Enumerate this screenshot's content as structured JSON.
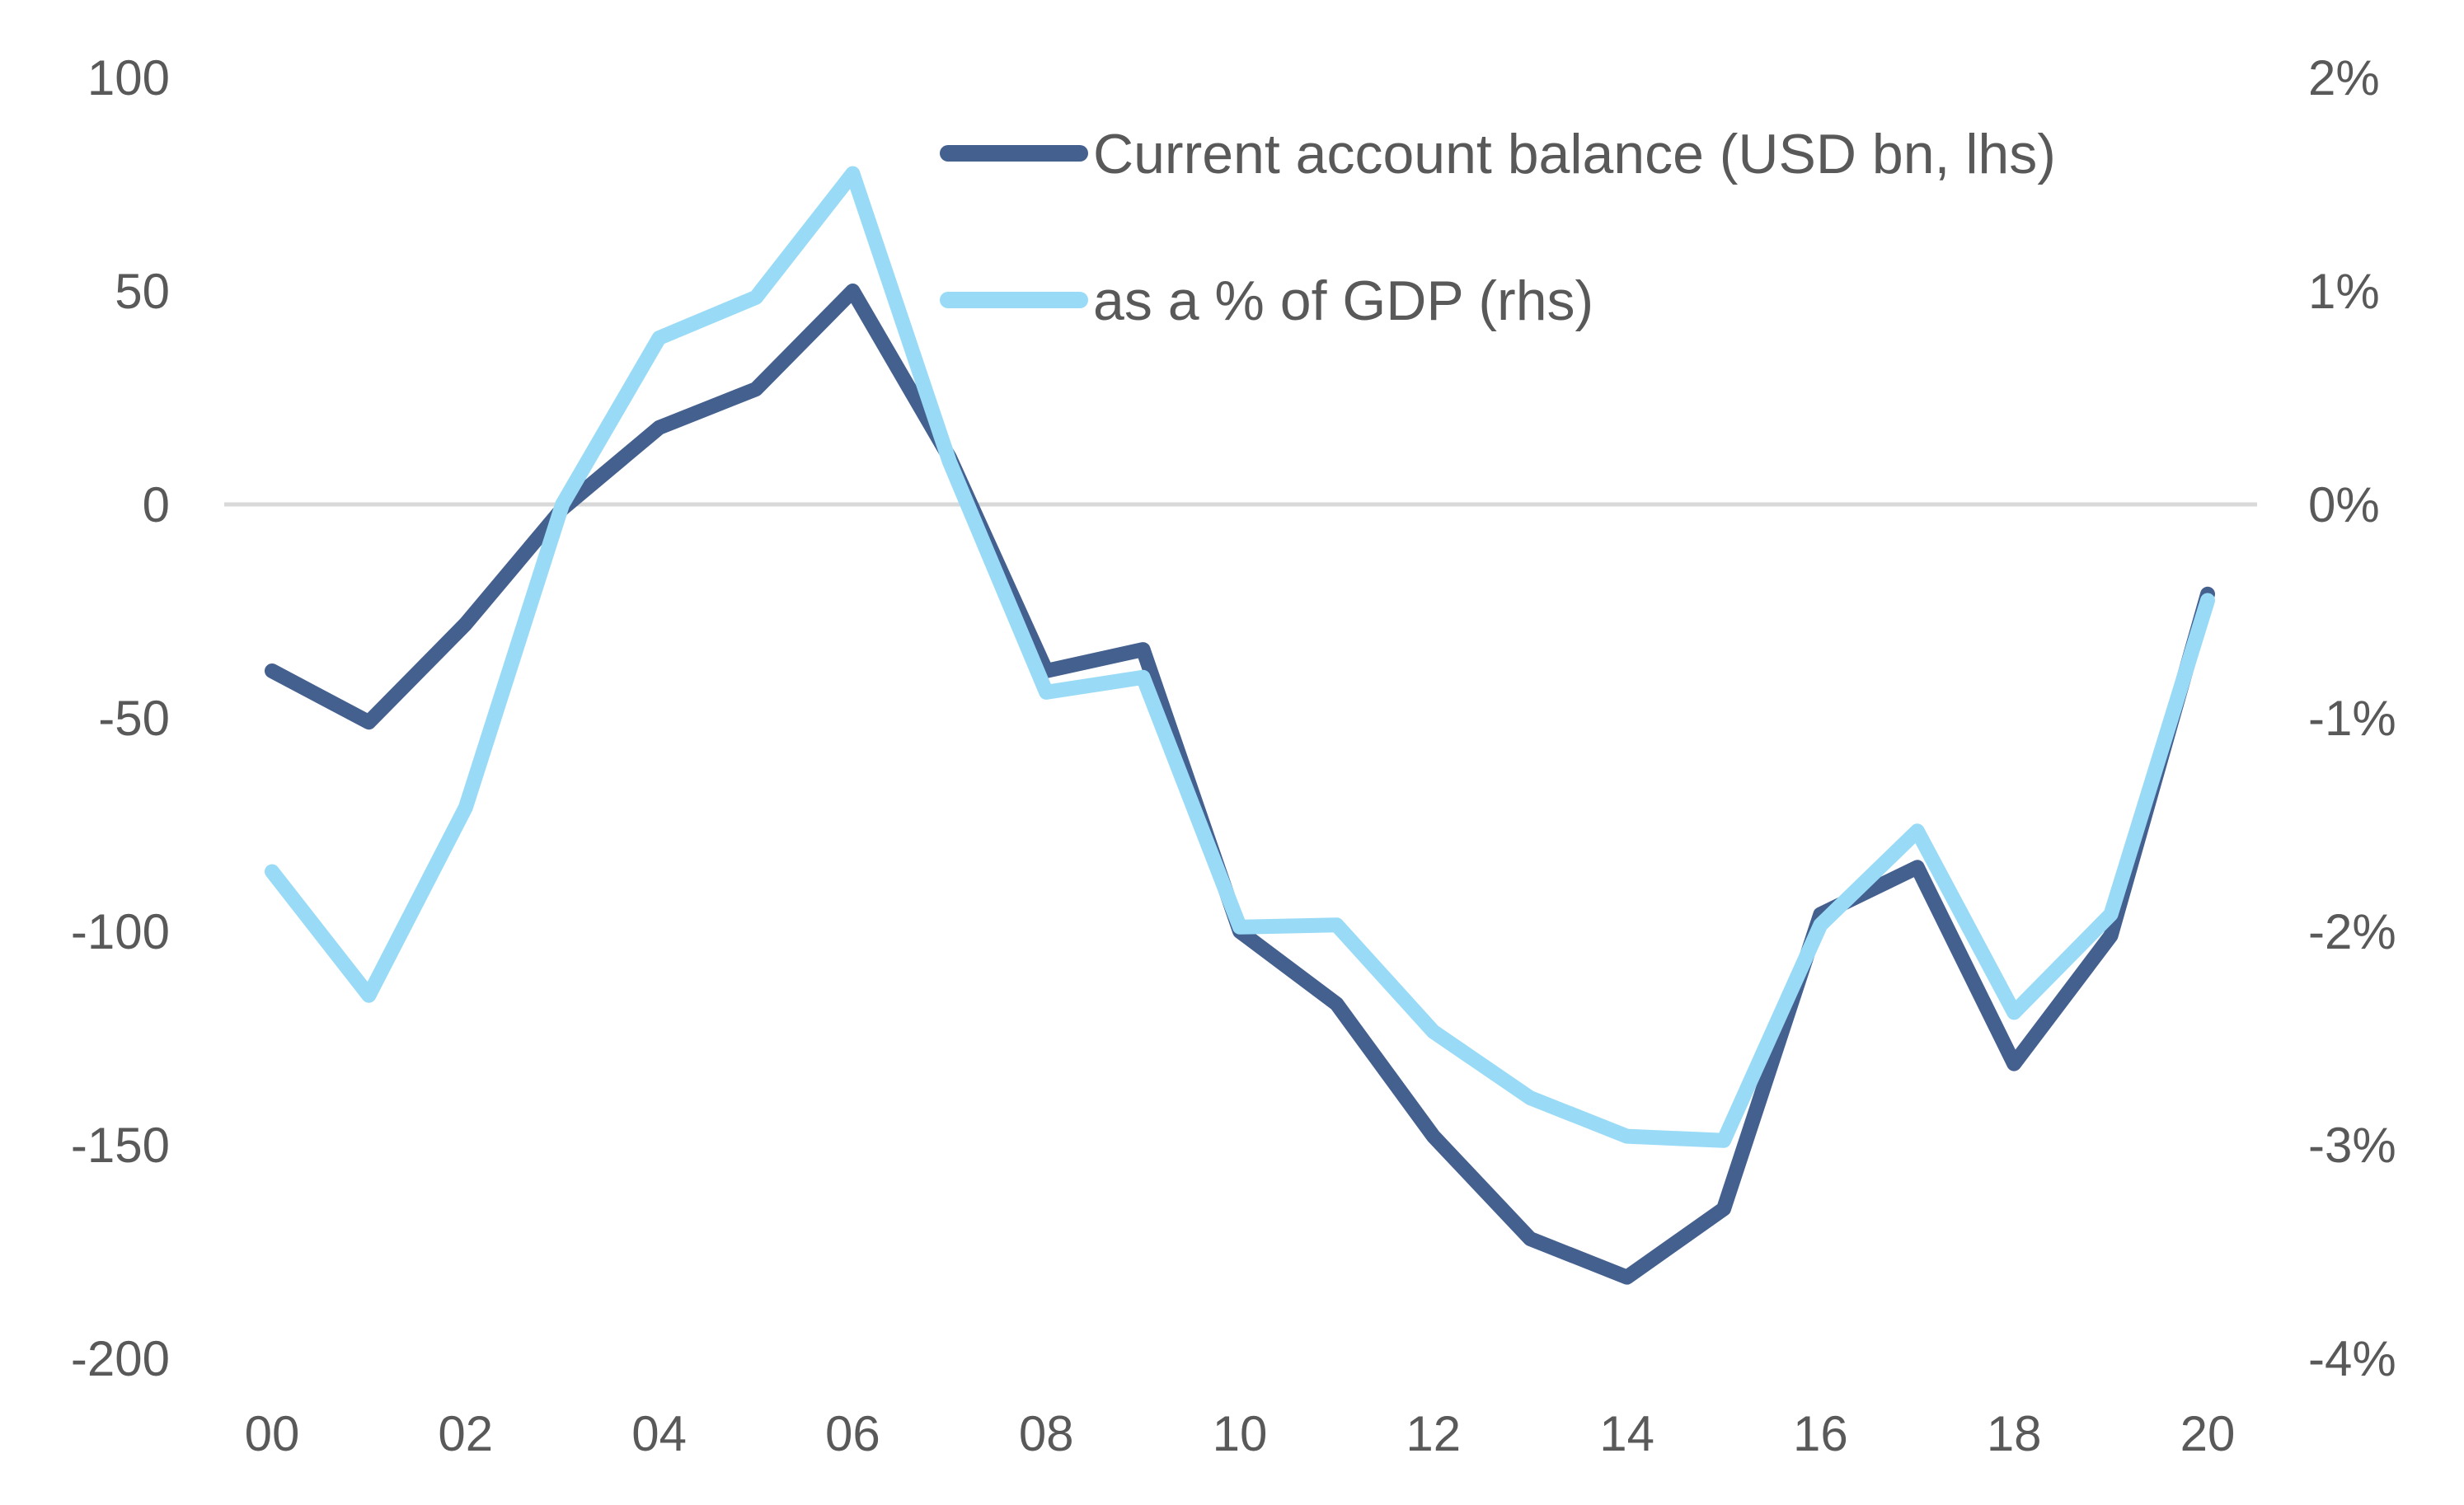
{
  "chart_data": {
    "type": "line",
    "title": "",
    "xlabel": "",
    "ylabel": "",
    "x": [
      "00",
      "01",
      "02",
      "03",
      "04",
      "05",
      "06",
      "07",
      "08",
      "09",
      "10",
      "11",
      "12",
      "13",
      "14",
      "15",
      "16",
      "17",
      "18",
      "19",
      "20"
    ],
    "x_tick_labels": [
      "00",
      "02",
      "04",
      "06",
      "08",
      "10",
      "12",
      "14",
      "16",
      "18",
      "20"
    ],
    "ylim_left": [
      -200,
      100
    ],
    "ylim_right": [
      -4,
      2
    ],
    "y_ticks_left": [
      "100",
      "50",
      "0",
      "-50",
      "-100",
      "-150",
      "-200"
    ],
    "y_ticks_right": [
      "2%",
      "1%",
      "0%",
      "-1%",
      "-2%",
      "-3%",
      "-4%"
    ],
    "grid": false,
    "legend_position": "top-center",
    "series": [
      {
        "name": "Current account balance (USD bn, lhs)",
        "axis": "left",
        "color": "#44608f",
        "values": [
          -39,
          -51,
          -28,
          -1,
          18,
          27,
          50,
          11,
          -39,
          -34,
          -100,
          -117,
          -148,
          -172,
          -181,
          -165,
          -96,
          -85,
          -131,
          -101,
          -21
        ]
      },
      {
        "name": "as a % of GDP (rhs)",
        "axis": "right",
        "color": "#99dbf7",
        "values": [
          -1.72,
          -2.3,
          -1.42,
          0.0,
          0.78,
          0.97,
          1.55,
          0.2,
          -0.88,
          -0.81,
          -1.98,
          -1.97,
          -2.47,
          -2.78,
          -2.96,
          -2.98,
          -1.97,
          -1.53,
          -2.38,
          -1.92,
          -0.45
        ]
      }
    ]
  }
}
